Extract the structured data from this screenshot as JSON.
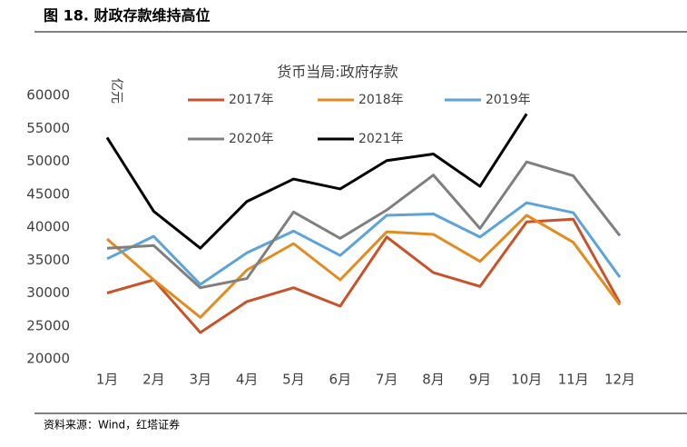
{
  "header": {
    "title": "图 18. 财政存款维持高位"
  },
  "chart_data": {
    "type": "line",
    "title": "货币当局:政府存款",
    "y_label": "亿元",
    "categories": [
      "1月",
      "2月",
      "3月",
      "4月",
      "5月",
      "6月",
      "7月",
      "8月",
      "9月",
      "10月",
      "11月",
      "12月"
    ],
    "series": [
      {
        "name": "2017年",
        "color": "#c8532b",
        "values": [
          30000,
          32000,
          24000,
          28700,
          30800,
          28000,
          38500,
          33100,
          31000,
          40800,
          41200,
          28500
        ]
      },
      {
        "name": "2018年",
        "color": "#e38b1f",
        "values": [
          38200,
          32000,
          26300,
          33500,
          37500,
          32000,
          39300,
          38900,
          34800,
          41800,
          37700,
          28200
        ]
      },
      {
        "name": "2019年",
        "color": "#5ba3d9",
        "values": [
          35200,
          38600,
          31300,
          36100,
          39400,
          35700,
          41800,
          42000,
          38500,
          43700,
          42200,
          32400
        ]
      },
      {
        "name": "2020年",
        "color": "#7f7f7f",
        "values": [
          36800,
          37200,
          30800,
          32200,
          42300,
          38300,
          42600,
          47900,
          39800,
          49900,
          47800,
          38700
        ]
      },
      {
        "name": "2021年",
        "color": "#000000",
        "values": [
          53600,
          42400,
          36800,
          43900,
          47300,
          45800,
          50100,
          51100,
          46200,
          57200,
          null,
          null
        ]
      }
    ],
    "ylim": [
      20000,
      60000
    ],
    "yticks": [
      20000,
      25000,
      30000,
      35000,
      40000,
      45000,
      50000,
      55000,
      60000
    ],
    "grid": false
  },
  "footer": {
    "source": "资料来源：Wind，红塔证券"
  }
}
